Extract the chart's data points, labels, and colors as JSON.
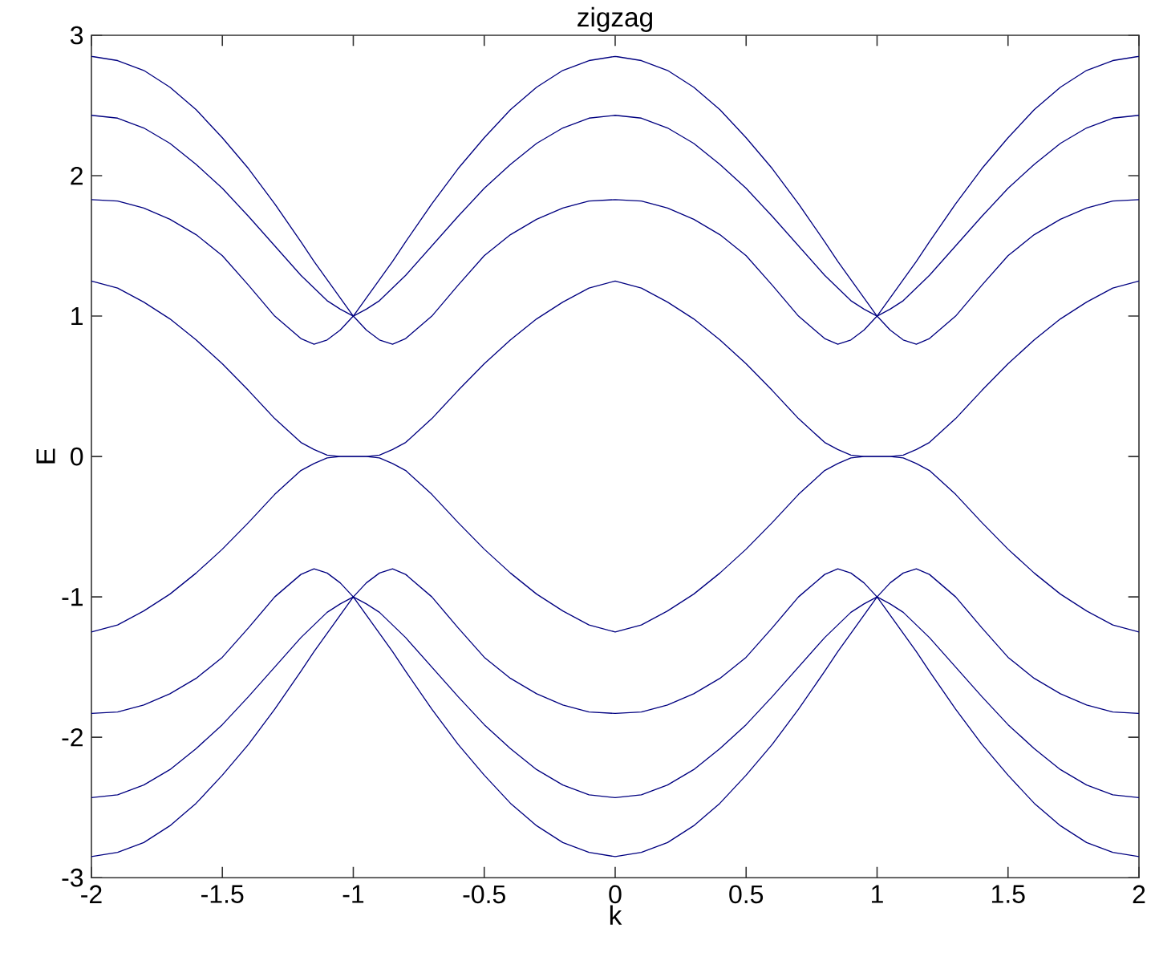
{
  "chart_data": {
    "type": "line",
    "title": "zigzag",
    "xlabel": "k",
    "ylabel": "E",
    "xlim": [
      -2,
      2
    ],
    "ylim": [
      -3,
      3
    ],
    "xticks": [
      -2,
      -1.5,
      -1,
      -0.5,
      0,
      0.5,
      1,
      1.5,
      2
    ],
    "yticks": [
      -3,
      -2,
      -1,
      0,
      1,
      2,
      3
    ],
    "x": [
      -2,
      -1.9,
      -1.8,
      -1.7,
      -1.6,
      -1.5,
      -1.4,
      -1.3,
      -1.2,
      -1.15,
      -1.1,
      -1.05,
      -1,
      -0.95,
      -0.9,
      -0.85,
      -0.8,
      -0.7,
      -0.6,
      -0.5,
      -0.4,
      -0.3,
      -0.2,
      -0.1,
      0,
      0.1,
      0.2,
      0.3,
      0.4,
      0.5,
      0.6,
      0.7,
      0.8,
      0.85,
      0.9,
      0.95,
      1,
      1.05,
      1.1,
      1.15,
      1.2,
      1.3,
      1.4,
      1.5,
      1.6,
      1.7,
      1.8,
      1.9,
      2
    ],
    "series": [
      {
        "color": "#000080",
        "values": [
          2.85,
          2.82,
          2.75,
          2.63,
          2.47,
          2.27,
          2.05,
          1.8,
          1.53,
          1.39,
          1.26,
          1.13,
          1.0,
          1.13,
          1.26,
          1.39,
          1.53,
          1.8,
          2.05,
          2.27,
          2.47,
          2.63,
          2.75,
          2.82,
          2.85,
          2.82,
          2.75,
          2.63,
          2.47,
          2.27,
          2.05,
          1.8,
          1.53,
          1.39,
          1.26,
          1.13,
          1.0,
          1.13,
          1.26,
          1.39,
          1.53,
          1.8,
          2.05,
          2.27,
          2.47,
          2.63,
          2.75,
          2.82,
          2.85
        ]
      },
      {
        "color": "#000080",
        "values": [
          2.43,
          2.41,
          2.34,
          2.23,
          2.08,
          1.91,
          1.71,
          1.5,
          1.29,
          1.2,
          1.11,
          1.05,
          1.0,
          1.05,
          1.11,
          1.2,
          1.29,
          1.5,
          1.71,
          1.91,
          2.08,
          2.23,
          2.34,
          2.41,
          2.43,
          2.41,
          2.34,
          2.23,
          2.08,
          1.91,
          1.71,
          1.5,
          1.29,
          1.2,
          1.11,
          1.05,
          1.0,
          1.05,
          1.11,
          1.2,
          1.29,
          1.5,
          1.71,
          1.91,
          2.08,
          2.23,
          2.34,
          2.41,
          2.43
        ]
      },
      {
        "color": "#000080",
        "values": [
          1.83,
          1.82,
          1.77,
          1.69,
          1.58,
          1.43,
          1.22,
          1.0,
          0.84,
          0.8,
          0.83,
          0.9,
          1.0,
          0.9,
          0.83,
          0.8,
          0.84,
          1.0,
          1.22,
          1.43,
          1.58,
          1.69,
          1.77,
          1.82,
          1.83,
          1.82,
          1.77,
          1.69,
          1.58,
          1.43,
          1.22,
          1.0,
          0.84,
          0.8,
          0.83,
          0.9,
          1.0,
          0.9,
          0.83,
          0.8,
          0.84,
          1.0,
          1.22,
          1.43,
          1.58,
          1.69,
          1.77,
          1.82,
          1.83
        ]
      },
      {
        "color": "#000080",
        "values": [
          1.25,
          1.2,
          1.1,
          0.98,
          0.83,
          0.66,
          0.47,
          0.27,
          0.1,
          0.05,
          0.01,
          0,
          0,
          0,
          0.01,
          0.05,
          0.1,
          0.27,
          0.47,
          0.66,
          0.83,
          0.98,
          1.1,
          1.2,
          1.25,
          1.2,
          1.1,
          0.98,
          0.83,
          0.66,
          0.47,
          0.27,
          0.1,
          0.05,
          0.01,
          0,
          0,
          0,
          0.01,
          0.05,
          0.1,
          0.27,
          0.47,
          0.66,
          0.83,
          0.98,
          1.1,
          1.2,
          1.25
        ]
      },
      {
        "color": "#000080",
        "values": [
          -1.25,
          -1.2,
          -1.1,
          -0.98,
          -0.83,
          -0.66,
          -0.47,
          -0.27,
          -0.1,
          -0.05,
          -0.01,
          0,
          0,
          0,
          -0.01,
          -0.05,
          -0.1,
          -0.27,
          -0.47,
          -0.66,
          -0.83,
          -0.98,
          -1.1,
          -1.2,
          -1.25,
          -1.2,
          -1.1,
          -0.98,
          -0.83,
          -0.66,
          -0.47,
          -0.27,
          -0.1,
          -0.05,
          -0.01,
          0,
          0,
          0,
          -0.01,
          -0.05,
          -0.1,
          -0.27,
          -0.47,
          -0.66,
          -0.83,
          -0.98,
          -1.1,
          -1.2,
          -1.25
        ]
      },
      {
        "color": "#000080",
        "values": [
          -1.83,
          -1.82,
          -1.77,
          -1.69,
          -1.58,
          -1.43,
          -1.22,
          -1.0,
          -0.84,
          -0.8,
          -0.83,
          -0.9,
          -1.0,
          -0.9,
          -0.83,
          -0.8,
          -0.84,
          -1.0,
          -1.22,
          -1.43,
          -1.58,
          -1.69,
          -1.77,
          -1.82,
          -1.83,
          -1.82,
          -1.77,
          -1.69,
          -1.58,
          -1.43,
          -1.22,
          -1.0,
          -0.84,
          -0.8,
          -0.83,
          -0.9,
          -1.0,
          -0.9,
          -0.83,
          -0.8,
          -0.84,
          -1.0,
          -1.22,
          -1.43,
          -1.58,
          -1.69,
          -1.77,
          -1.82,
          -1.83
        ]
      },
      {
        "color": "#000080",
        "values": [
          -2.43,
          -2.41,
          -2.34,
          -2.23,
          -2.08,
          -1.91,
          -1.71,
          -1.5,
          -1.29,
          -1.2,
          -1.11,
          -1.05,
          -1.0,
          -1.05,
          -1.11,
          -1.2,
          -1.29,
          -1.5,
          -1.71,
          -1.91,
          -2.08,
          -2.23,
          -2.34,
          -2.41,
          -2.43,
          -2.41,
          -2.34,
          -2.23,
          -2.08,
          -1.91,
          -1.71,
          -1.5,
          -1.29,
          -1.2,
          -1.11,
          -1.05,
          -1.0,
          -1.05,
          -1.11,
          -1.2,
          -1.29,
          -1.5,
          -1.71,
          -1.91,
          -2.08,
          -2.23,
          -2.34,
          -2.41,
          -2.43
        ]
      },
      {
        "color": "#000080",
        "values": [
          -2.85,
          -2.82,
          -2.75,
          -2.63,
          -2.47,
          -2.27,
          -2.05,
          -1.8,
          -1.53,
          -1.39,
          -1.26,
          -1.13,
          -1.0,
          -1.13,
          -1.26,
          -1.39,
          -1.53,
          -1.8,
          -2.05,
          -2.27,
          -2.47,
          -2.63,
          -2.75,
          -2.82,
          -2.85,
          -2.82,
          -2.75,
          -2.63,
          -2.47,
          -2.27,
          -2.05,
          -1.8,
          -1.53,
          -1.39,
          -1.26,
          -1.13,
          -1.0,
          -1.13,
          -1.26,
          -1.39,
          -1.53,
          -1.8,
          -2.05,
          -2.27,
          -2.47,
          -2.63,
          -2.75,
          -2.82,
          -2.85
        ]
      }
    ]
  }
}
